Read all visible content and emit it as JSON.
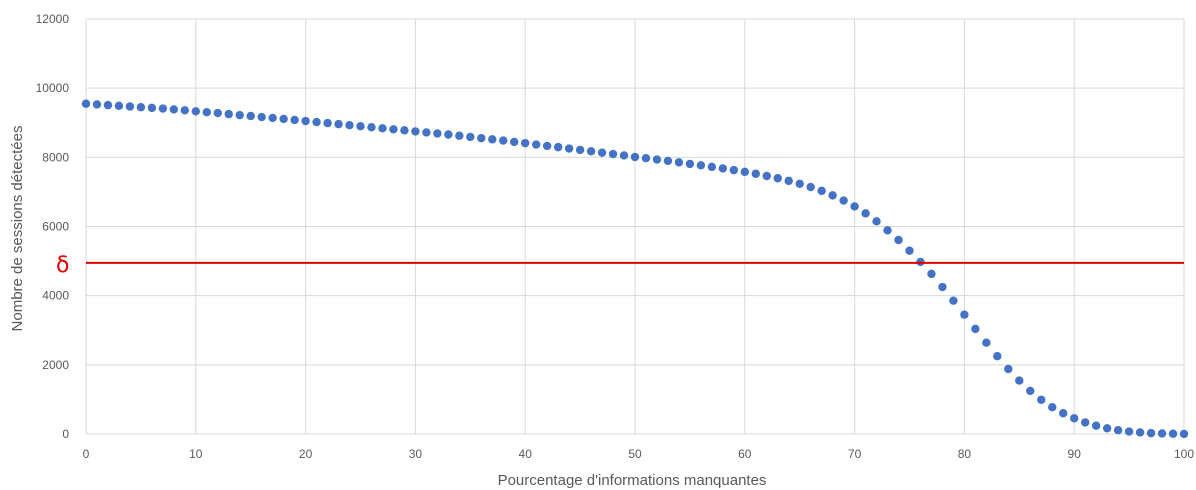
{
  "chart_data": {
    "type": "scatter",
    "title": "",
    "xlabel": "Pourcentage d'informations manquantes",
    "ylabel": "Nombre de sessions détectées",
    "xlim": [
      0,
      100
    ],
    "ylim": [
      0,
      12000
    ],
    "x_ticks": [
      0,
      10,
      20,
      30,
      40,
      50,
      60,
      70,
      80,
      90,
      100
    ],
    "y_ticks": [
      0,
      2000,
      4000,
      6000,
      8000,
      10000,
      12000
    ],
    "grid": true,
    "legend": "none",
    "series": [
      {
        "color": "#4472c4",
        "x": [
          0,
          1,
          2,
          3,
          4,
          5,
          6,
          7,
          8,
          9,
          10,
          11,
          12,
          13,
          14,
          15,
          16,
          17,
          18,
          19,
          20,
          21,
          22,
          23,
          24,
          25,
          26,
          27,
          28,
          29,
          30,
          31,
          32,
          33,
          34,
          35,
          36,
          37,
          38,
          39,
          40,
          41,
          42,
          43,
          44,
          45,
          46,
          47,
          48,
          49,
          50,
          51,
          52,
          53,
          54,
          55,
          56,
          57,
          58,
          59,
          60,
          61,
          62,
          63,
          64,
          65,
          66,
          67,
          68,
          69,
          70,
          71,
          72,
          73,
          74,
          75,
          76,
          77,
          78,
          79,
          80,
          81,
          82,
          83,
          84,
          85,
          86,
          87,
          88,
          89,
          90,
          91,
          92,
          93,
          94,
          95,
          96,
          97,
          98,
          99,
          100
        ],
        "y": [
          9550,
          9530,
          9510,
          9490,
          9470,
          9450,
          9430,
          9410,
          9385,
          9360,
          9330,
          9305,
          9280,
          9250,
          9220,
          9195,
          9165,
          9140,
          9110,
          9080,
          9050,
          9020,
          8990,
          8960,
          8930,
          8900,
          8870,
          8840,
          8810,
          8780,
          8750,
          8720,
          8690,
          8660,
          8625,
          8590,
          8555,
          8520,
          8485,
          8445,
          8410,
          8370,
          8330,
          8295,
          8255,
          8215,
          8175,
          8135,
          8095,
          8055,
          8010,
          7975,
          7935,
          7895,
          7855,
          7810,
          7770,
          7725,
          7680,
          7630,
          7580,
          7525,
          7460,
          7395,
          7320,
          7235,
          7140,
          7030,
          6900,
          6750,
          6580,
          6380,
          6150,
          5890,
          5610,
          5300,
          4975,
          4630,
          4250,
          3855,
          3450,
          3040,
          2640,
          2250,
          1880,
          1545,
          1245,
          990,
          775,
          600,
          455,
          335,
          240,
          165,
          110,
          70,
          45,
          25,
          15,
          8,
          3
        ]
      },
      {
        "name": "δ",
        "type": "threshold",
        "color": "#e00000",
        "y": 4950
      }
    ]
  }
}
